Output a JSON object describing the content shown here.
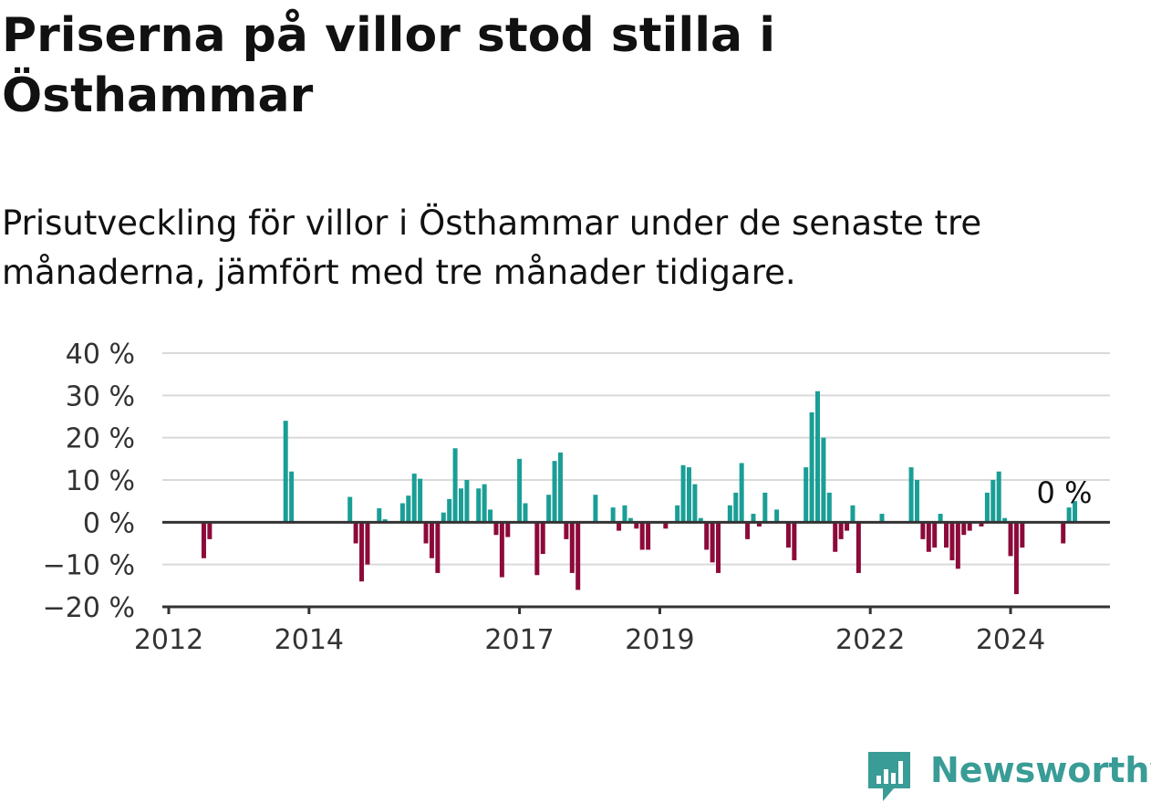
{
  "title": "Priserna på villor stod stilla i Östhammar",
  "subtitle": "Prisutveckling för villor i Östhammar under de senaste tre månaderna, jämfört med tre månader tidigare.",
  "brand": {
    "name": "Newsworthy",
    "icon": "bar-chart-speech-bubble-icon",
    "color": "#3a9c96"
  },
  "colors": {
    "positive": "#1a9e96",
    "negative": "#8c0a3a",
    "grid": "#d9d9d9",
    "axis": "#333333"
  },
  "chart_data": {
    "type": "bar",
    "y_unit": "%",
    "ylim": [
      -20,
      40
    ],
    "y_ticks": [
      40,
      30,
      20,
      10,
      0,
      -10,
      -20
    ],
    "y_tick_labels": [
      "40 %",
      "30 %",
      "20 %",
      "10 %",
      "0 %",
      "−10 %",
      "−20 %"
    ],
    "x_range": [
      "2012-01",
      "2025-06"
    ],
    "x_tick_labels": [
      "2012",
      "2014",
      "2017",
      "2019",
      "2022",
      "2024"
    ],
    "grid": true,
    "last_value_label": "0 %",
    "series": [
      {
        "values": [
          [
            "2012-07",
            -8.5
          ],
          [
            "2012-08",
            -4
          ],
          [
            "2013-09",
            24
          ],
          [
            "2013-10",
            12
          ],
          [
            "2014-08",
            6
          ],
          [
            "2014-09",
            -5
          ],
          [
            "2014-10",
            -14
          ],
          [
            "2014-11",
            -10
          ],
          [
            "2015-01",
            3.3
          ],
          [
            "2015-02",
            0.7
          ],
          [
            "2015-05",
            4.5
          ],
          [
            "2015-06",
            6.3
          ],
          [
            "2015-07",
            11.5
          ],
          [
            "2015-08",
            10.3
          ],
          [
            "2015-09",
            -5
          ],
          [
            "2015-10",
            -8.5
          ],
          [
            "2015-11",
            -12
          ],
          [
            "2015-12",
            2.3
          ],
          [
            "2016-01",
            5.5
          ],
          [
            "2016-02",
            17.5
          ],
          [
            "2016-03",
            8
          ],
          [
            "2016-04",
            10
          ],
          [
            "2016-06",
            8
          ],
          [
            "2016-07",
            9
          ],
          [
            "2016-08",
            3
          ],
          [
            "2016-09",
            -3
          ],
          [
            "2016-10",
            -13
          ],
          [
            "2016-11",
            -3.5
          ],
          [
            "2017-01",
            15
          ],
          [
            "2017-02",
            4.5
          ],
          [
            "2017-04",
            -12.5
          ],
          [
            "2017-05",
            -7.5
          ],
          [
            "2017-06",
            6.5
          ],
          [
            "2017-07",
            14.5
          ],
          [
            "2017-08",
            16.5
          ],
          [
            "2017-09",
            -4
          ],
          [
            "2017-10",
            -12
          ],
          [
            "2017-11",
            -16
          ],
          [
            "2018-02",
            6.5
          ],
          [
            "2018-05",
            3.5
          ],
          [
            "2018-06",
            -2
          ],
          [
            "2018-07",
            4
          ],
          [
            "2018-08",
            1
          ],
          [
            "2018-09",
            -1.5
          ],
          [
            "2018-10",
            -6.5
          ],
          [
            "2018-11",
            -6.5
          ],
          [
            "2019-02",
            -1.5
          ],
          [
            "2019-04",
            4
          ],
          [
            "2019-05",
            13.5
          ],
          [
            "2019-06",
            13
          ],
          [
            "2019-07",
            9
          ],
          [
            "2019-08",
            1
          ],
          [
            "2019-09",
            -6.5
          ],
          [
            "2019-10",
            -9.5
          ],
          [
            "2019-11",
            -12
          ],
          [
            "2020-01",
            4
          ],
          [
            "2020-02",
            7
          ],
          [
            "2020-03",
            14
          ],
          [
            "2020-04",
            -4
          ],
          [
            "2020-05",
            2
          ],
          [
            "2020-06",
            -1
          ],
          [
            "2020-07",
            7
          ],
          [
            "2020-09",
            3
          ],
          [
            "2020-11",
            -6
          ],
          [
            "2020-12",
            -9
          ],
          [
            "2021-02",
            13
          ],
          [
            "2021-03",
            26
          ],
          [
            "2021-04",
            31
          ],
          [
            "2021-05",
            20
          ],
          [
            "2021-06",
            7
          ],
          [
            "2021-07",
            -7
          ],
          [
            "2021-08",
            -4
          ],
          [
            "2021-09",
            -2
          ],
          [
            "2021-10",
            4
          ],
          [
            "2021-11",
            -12
          ],
          [
            "2022-03",
            2
          ],
          [
            "2022-08",
            13
          ],
          [
            "2022-09",
            10
          ],
          [
            "2022-10",
            -4
          ],
          [
            "2022-11",
            -7
          ],
          [
            "2022-12",
            -6
          ],
          [
            "2023-01",
            2
          ],
          [
            "2023-02",
            -6
          ],
          [
            "2023-03",
            -9
          ],
          [
            "2023-04",
            -11
          ],
          [
            "2023-05",
            -3
          ],
          [
            "2023-06",
            -2
          ],
          [
            "2023-08",
            -1
          ],
          [
            "2023-09",
            7
          ],
          [
            "2023-10",
            10
          ],
          [
            "2023-11",
            12
          ],
          [
            "2023-12",
            1
          ],
          [
            "2024-01",
            -8
          ],
          [
            "2024-02",
            -17
          ],
          [
            "2024-03",
            -6
          ],
          [
            "2024-10",
            -5
          ],
          [
            "2024-11",
            3.5
          ],
          [
            "2024-12",
            5
          ],
          [
            "2025-01",
            0
          ]
        ]
      }
    ]
  }
}
